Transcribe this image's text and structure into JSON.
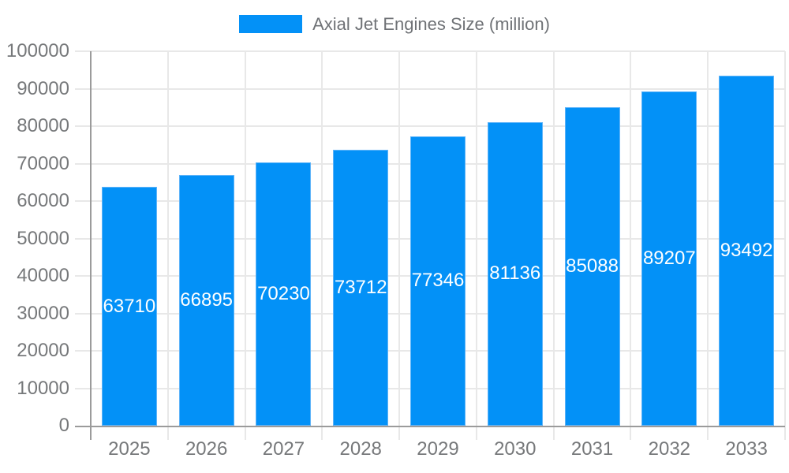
{
  "legend": {
    "label": "Axial Jet Engines Size (million)"
  },
  "colors": {
    "bar": "#0391f7",
    "bar_border": "#5fb4f9",
    "grid": "#e8e8e8",
    "axis": "#9b9b9b",
    "tick_label": "#76787a",
    "legend_label": "#6f7276",
    "bar_label": "#ffffff",
    "background": "#ffffff"
  },
  "chart_data": {
    "type": "bar",
    "title": "Axial Jet Engines Size (million)",
    "categories": [
      "2025",
      "2026",
      "2027",
      "2028",
      "2029",
      "2030",
      "2031",
      "2032",
      "2033"
    ],
    "values": [
      63710,
      66895,
      70230,
      73712,
      77346,
      81136,
      85088,
      89207,
      93492
    ],
    "series": [
      {
        "name": "Axial Jet Engines Size (million)",
        "values": [
          63710,
          66895,
          70230,
          73712,
          77346,
          81136,
          85088,
          89207,
          93492
        ]
      }
    ],
    "xlabel": "",
    "ylabel": "",
    "ylim": [
      0,
      100000
    ],
    "ytick_step": 10000,
    "yticks": [
      0,
      10000,
      20000,
      30000,
      40000,
      50000,
      60000,
      70000,
      80000,
      90000,
      100000
    ],
    "grid": true,
    "legend_position": "top",
    "value_labels": "inside-center"
  }
}
